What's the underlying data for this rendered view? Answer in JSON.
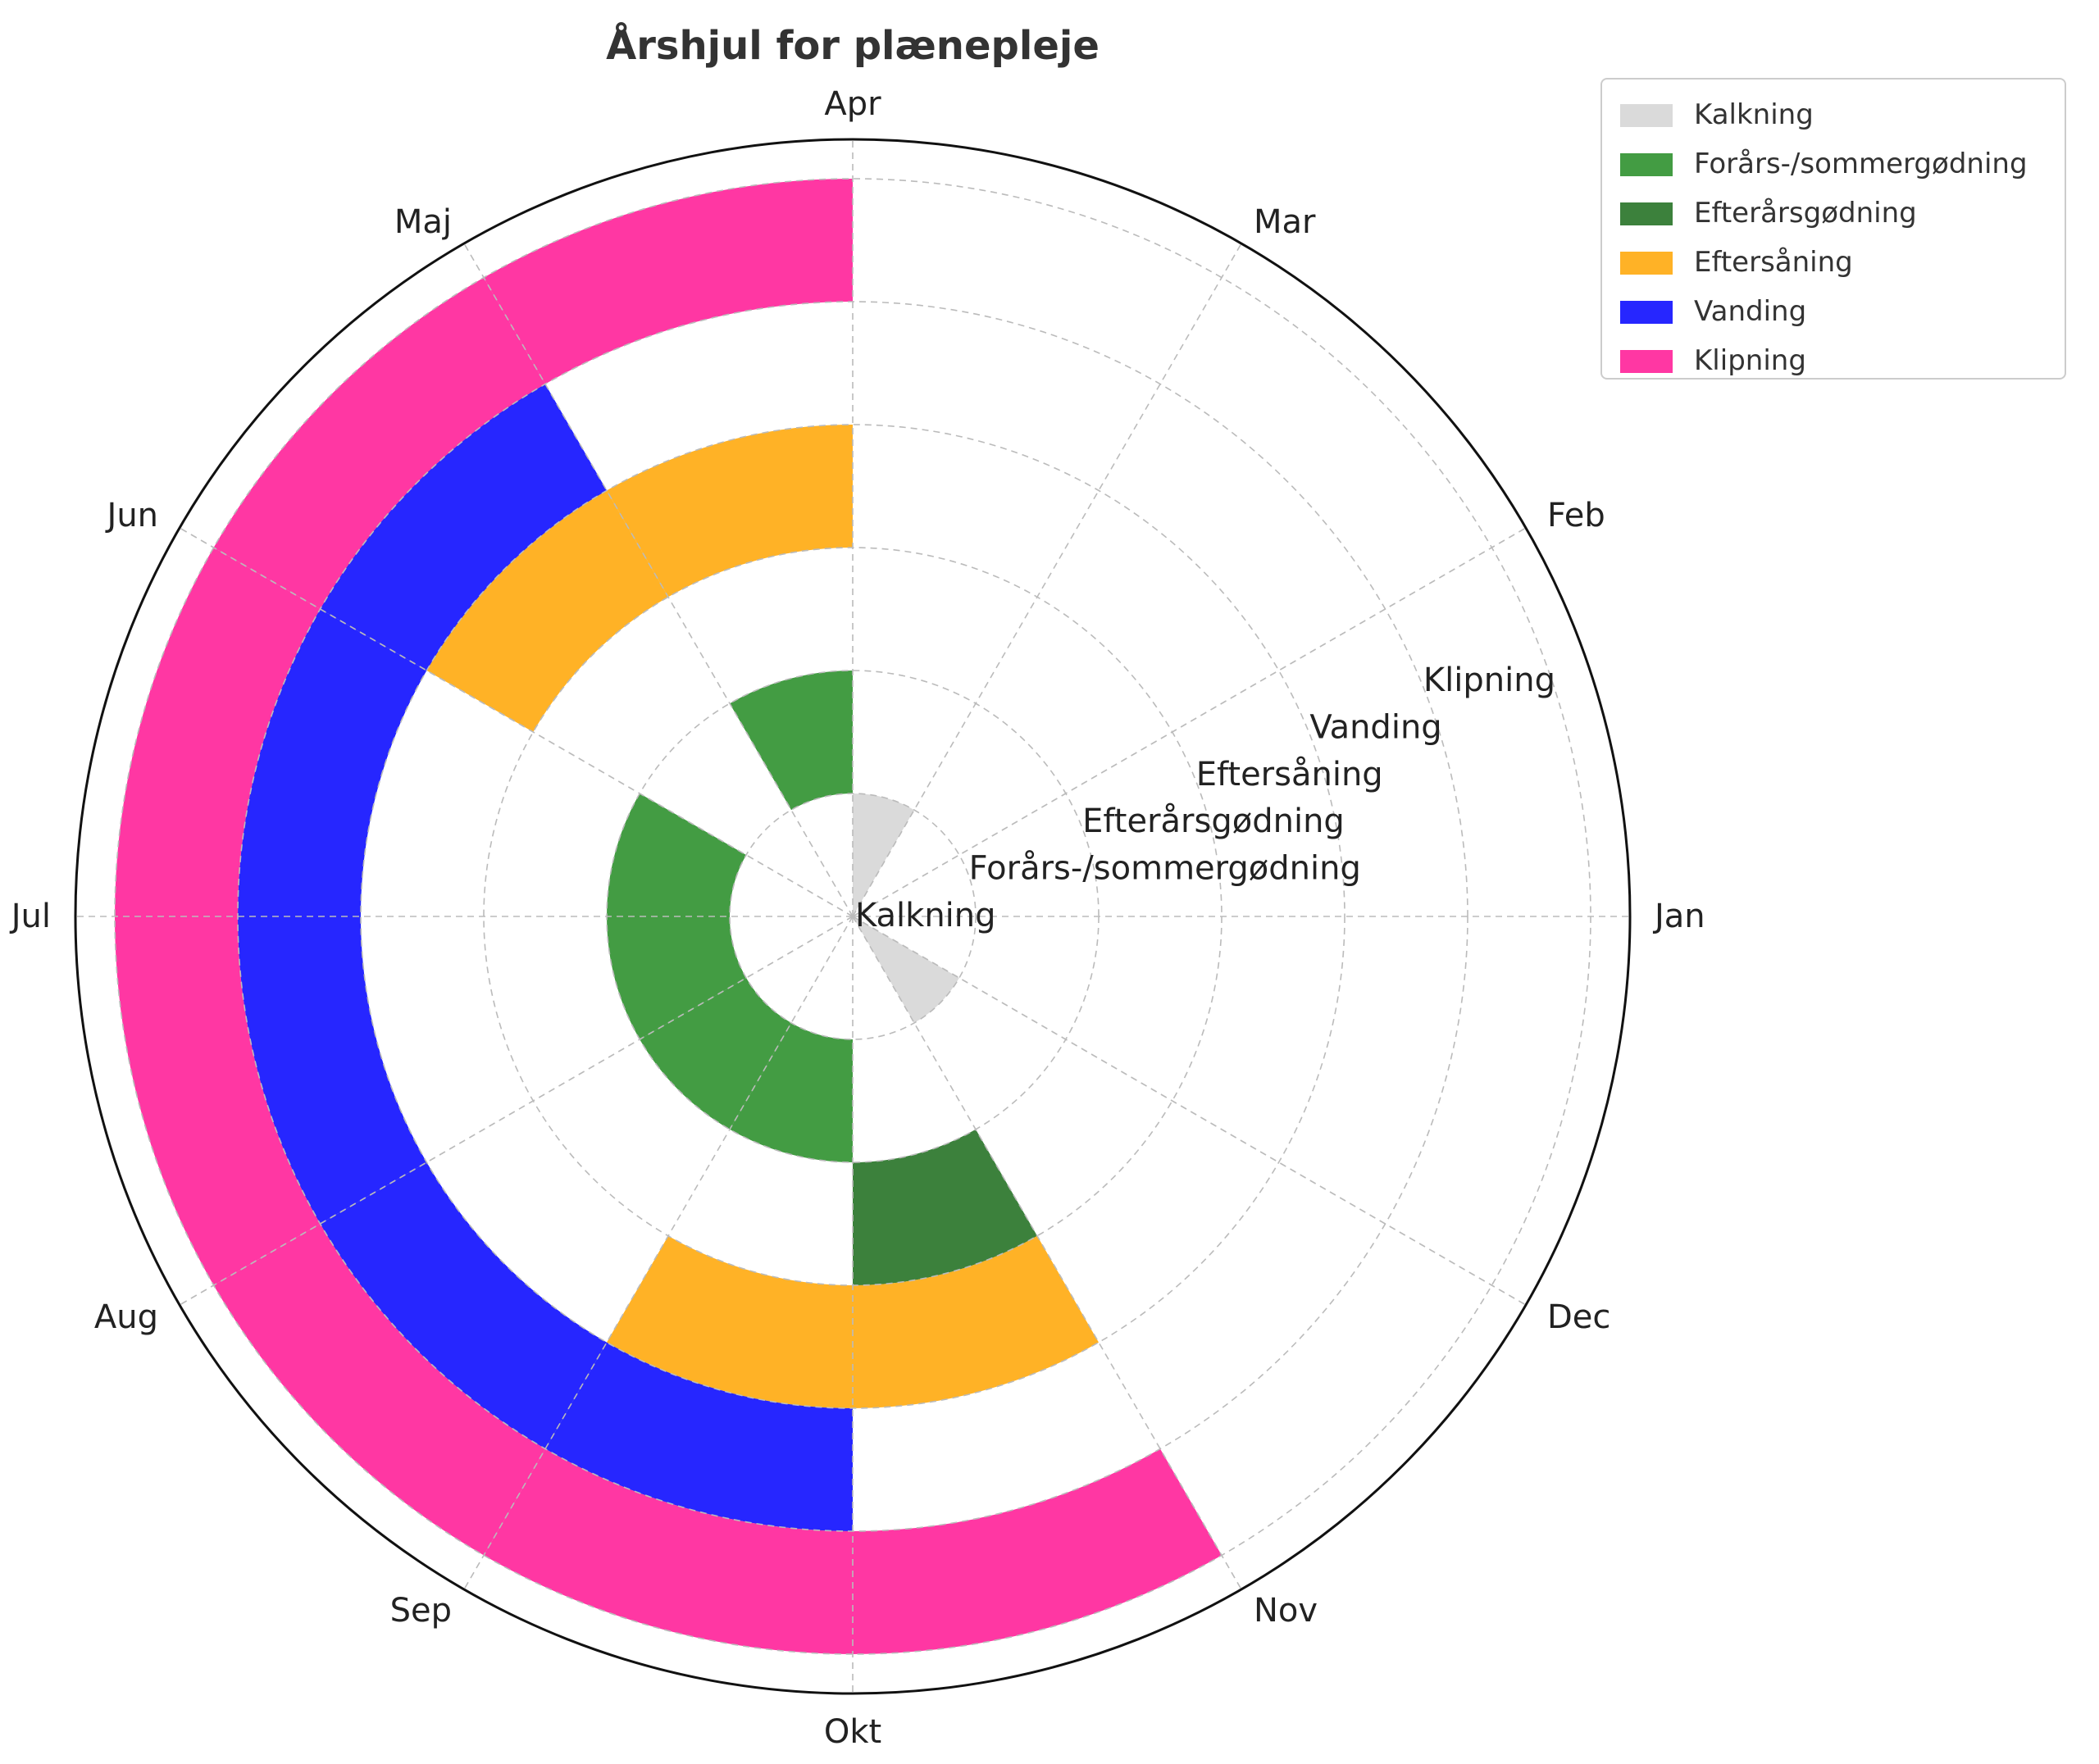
{
  "chart_data": {
    "type": "polar-bar",
    "title": "Årshjul for plænepleje",
    "months": [
      "Jan",
      "Feb",
      "Mar",
      "Apr",
      "Maj",
      "Jun",
      "Jul",
      "Aug",
      "Sep",
      "Okt",
      "Nov",
      "Dec"
    ],
    "series": [
      {
        "name": "Kalkning",
        "color": "#d3d3d3",
        "active_months": [
          "Mar",
          "Nov"
        ]
      },
      {
        "name": "Forårs-/sommergødning",
        "color": "#228b22",
        "active_months": [
          "Apr",
          "Jun",
          "Jul",
          "Aug",
          "Sep"
        ]
      },
      {
        "name": "Efterårsgødning",
        "color": "#1a6b1a",
        "active_months": [
          "Okt"
        ]
      },
      {
        "name": "Eftersåning",
        "color": "#ffa500",
        "active_months": [
          "Apr",
          "Maj",
          "Sep",
          "Okt"
        ]
      },
      {
        "name": "Vanding",
        "color": "#0000ff",
        "active_months": [
          "Maj",
          "Jun",
          "Jul",
          "Aug",
          "Sep"
        ]
      },
      {
        "name": "Klipning",
        "color": "#ff1493",
        "active_months": [
          "Apr",
          "Maj",
          "Jun",
          "Jul",
          "Aug",
          "Sep",
          "Okt"
        ]
      }
    ],
    "grid": true,
    "legend_position": "top-right",
    "direction": "counterclockwise",
    "zero_location": "east"
  }
}
